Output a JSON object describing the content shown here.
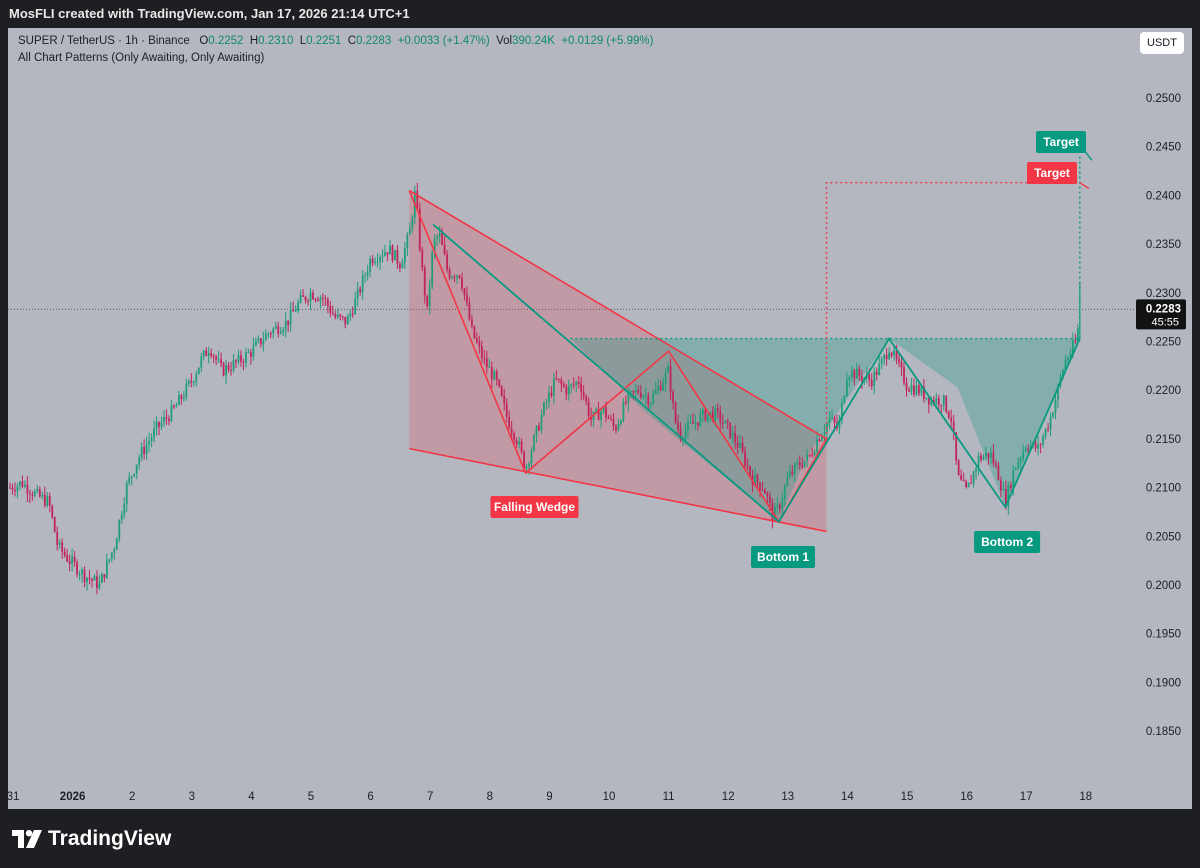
{
  "header": {
    "created_by": "MosFLI created with TradingView.com, Jan 17, 2026 21:14 UTC+1",
    "symbol_line": "SUPER / TetherUS · 1h · Binance",
    "ohlc": {
      "o_label": "O",
      "o": "0.2252",
      "h_label": "H",
      "h": "0.2310",
      "l_label": "L",
      "l": "0.2251",
      "c_label": "C",
      "c": "0.2283",
      "change": "+0.0033 (+1.47%)",
      "vol_label": "Vol",
      "vol": "390.24K",
      "vol_change": "+0.0129 (+5.99%)"
    },
    "indicator": "All Chart Patterns (Only Awaiting, Only Awaiting)",
    "currency_button": "USDT"
  },
  "branding": {
    "logo_text": "TradingView",
    "logo_icon": "tradingview-logo-icon"
  },
  "colors": {
    "plot_bg": "#b4b6c0",
    "up_candle": "#1f9e78",
    "down_candle": "#c2245a",
    "wedge": "#f23645",
    "double_bottom": "#089981",
    "frame": "#1e1f22"
  },
  "chart_data": {
    "type": "candlestick",
    "symbol": "SUPER / TetherUS",
    "interval": "1h",
    "exchange": "Binance",
    "current_price": "0.2283",
    "countdown": "45:55",
    "ylim": [
      0.18,
      0.256
    ],
    "y_ticks": [
      "0.2500",
      "0.2450",
      "0.2400",
      "0.2350",
      "0.2300",
      "0.2250",
      "0.2200",
      "0.2150",
      "0.2100",
      "0.2050",
      "0.2000",
      "0.1950",
      "0.1900",
      "0.1850"
    ],
    "x_ticks": [
      "31",
      "2026",
      "2",
      "3",
      "4",
      "5",
      "6",
      "7",
      "8",
      "9",
      "10",
      "11",
      "12",
      "13",
      "14",
      "15",
      "16",
      "17",
      "18"
    ],
    "x_tick_days": [
      0,
      1,
      2,
      3,
      4,
      5,
      6,
      7,
      8,
      9,
      10,
      11,
      12,
      13,
      14,
      15,
      16,
      17,
      18
    ],
    "price_path": [
      [
        -0.05,
        0.21
      ],
      [
        0.15,
        0.2105
      ],
      [
        0.4,
        0.2092
      ],
      [
        0.6,
        0.2085
      ],
      [
        0.75,
        0.204
      ],
      [
        0.95,
        0.2025
      ],
      [
        1.2,
        0.201
      ],
      [
        1.45,
        0.2
      ],
      [
        1.7,
        0.204
      ],
      [
        1.9,
        0.21
      ],
      [
        2.1,
        0.213
      ],
      [
        2.4,
        0.216
      ],
      [
        2.7,
        0.218
      ],
      [
        3.0,
        0.221
      ],
      [
        3.15,
        0.223
      ],
      [
        3.3,
        0.2245
      ],
      [
        3.5,
        0.222
      ],
      [
        3.8,
        0.223
      ],
      [
        4.0,
        0.224
      ],
      [
        4.3,
        0.226
      ],
      [
        4.6,
        0.227
      ],
      [
        4.8,
        0.229
      ],
      [
        5.0,
        0.23
      ],
      [
        5.2,
        0.2295
      ],
      [
        5.4,
        0.2275
      ],
      [
        5.6,
        0.227
      ],
      [
        5.8,
        0.23
      ],
      [
        6.0,
        0.2335
      ],
      [
        6.3,
        0.2345
      ],
      [
        6.5,
        0.233
      ],
      [
        6.65,
        0.236
      ],
      [
        6.75,
        0.2405
      ],
      [
        6.85,
        0.233
      ],
      [
        6.95,
        0.228
      ],
      [
        7.05,
        0.235
      ],
      [
        7.15,
        0.236
      ],
      [
        7.3,
        0.232
      ],
      [
        7.5,
        0.232
      ],
      [
        7.7,
        0.226
      ],
      [
        7.9,
        0.223
      ],
      [
        8.1,
        0.221
      ],
      [
        8.3,
        0.217
      ],
      [
        8.45,
        0.215
      ],
      [
        8.6,
        0.212
      ],
      [
        8.7,
        0.214
      ],
      [
        8.9,
        0.218
      ],
      [
        9.1,
        0.221
      ],
      [
        9.3,
        0.22
      ],
      [
        9.5,
        0.221
      ],
      [
        9.7,
        0.217
      ],
      [
        9.9,
        0.218
      ],
      [
        10.1,
        0.216
      ],
      [
        10.3,
        0.219
      ],
      [
        10.5,
        0.22
      ],
      [
        10.7,
        0.219
      ],
      [
        10.9,
        0.221
      ],
      [
        11.0,
        0.222
      ],
      [
        11.1,
        0.217
      ],
      [
        11.2,
        0.2155
      ],
      [
        11.4,
        0.2165
      ],
      [
        11.6,
        0.2175
      ],
      [
        11.8,
        0.2175
      ],
      [
        12.0,
        0.216
      ],
      [
        12.2,
        0.214
      ],
      [
        12.4,
        0.211
      ],
      [
        12.6,
        0.21
      ],
      [
        12.75,
        0.207
      ],
      [
        12.85,
        0.208
      ],
      [
        13.0,
        0.211
      ],
      [
        13.2,
        0.2125
      ],
      [
        13.35,
        0.213
      ],
      [
        13.5,
        0.215
      ],
      [
        13.7,
        0.217
      ],
      [
        13.85,
        0.216
      ],
      [
        14.0,
        0.222
      ],
      [
        14.2,
        0.2215
      ],
      [
        14.4,
        0.221
      ],
      [
        14.6,
        0.223
      ],
      [
        14.7,
        0.2245
      ],
      [
        14.85,
        0.2225
      ],
      [
        15.0,
        0.2205
      ],
      [
        15.2,
        0.22
      ],
      [
        15.4,
        0.219
      ],
      [
        15.6,
        0.219
      ],
      [
        15.75,
        0.217
      ],
      [
        15.85,
        0.211
      ],
      [
        16.0,
        0.2095
      ],
      [
        16.2,
        0.213
      ],
      [
        16.4,
        0.2135
      ],
      [
        16.55,
        0.211
      ],
      [
        16.65,
        0.2085
      ],
      [
        16.8,
        0.212
      ],
      [
        17.0,
        0.2145
      ],
      [
        17.2,
        0.214
      ],
      [
        17.4,
        0.217
      ],
      [
        17.55,
        0.2205
      ],
      [
        17.65,
        0.223
      ],
      [
        17.75,
        0.224
      ],
      [
        17.85,
        0.2252
      ],
      [
        17.9,
        0.2283
      ]
    ],
    "patterns": {
      "falling_wedge": {
        "label": "Falling Wedge",
        "upper_line": [
          [
            6.65,
            0.2405
          ],
          [
            13.65,
            0.215
          ]
        ],
        "lower_line": [
          [
            6.65,
            0.214
          ],
          [
            13.65,
            0.2055
          ]
        ],
        "zigzag": [
          [
            6.65,
            0.2405
          ],
          [
            8.6,
            0.2115
          ],
          [
            11.0,
            0.224
          ],
          [
            12.85,
            0.2065
          ],
          [
            13.65,
            0.215
          ]
        ],
        "target_label": "Target",
        "target_price": 0.2413
      },
      "double_bottom": {
        "bottom1_label": "Bottom 1",
        "bottom2_label": "Bottom 2",
        "neckline_price": 0.2253,
        "neckline_start": 9.35,
        "zigzag": [
          [
            7.05,
            0.237
          ],
          [
            12.85,
            0.2065
          ],
          [
            14.7,
            0.2253
          ],
          [
            16.65,
            0.208
          ],
          [
            17.9,
            0.2253
          ]
        ],
        "target_label": "Target",
        "target_price": 0.2442
      }
    }
  }
}
